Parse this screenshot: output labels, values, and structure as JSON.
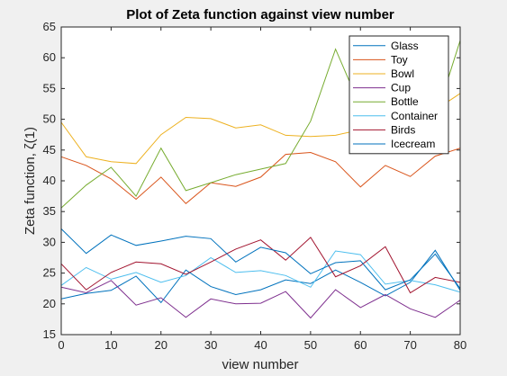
{
  "chart_data": {
    "type": "line",
    "title": "Plot of Zeta function against view number",
    "xlabel": "view number",
    "ylabel": "Zeta function, ζ(1)",
    "xlim": [
      0,
      80
    ],
    "ylim": [
      15,
      65
    ],
    "xticks": [
      0,
      10,
      20,
      30,
      40,
      50,
      60,
      70,
      80
    ],
    "yticks": [
      15,
      20,
      25,
      30,
      35,
      40,
      45,
      50,
      55,
      60,
      65
    ],
    "grid": false,
    "legend_location": "top-right",
    "x": [
      0,
      5,
      10,
      15,
      20,
      25,
      30,
      35,
      40,
      45,
      50,
      55,
      60,
      65,
      70,
      75,
      80
    ],
    "series": [
      {
        "name": "Glass",
        "color": "#0072bd",
        "values": [
          20.8,
          21.7,
          22.2,
          24.5,
          20.2,
          25.5,
          22.8,
          21.5,
          22.3,
          23.9,
          23.3,
          25.5,
          23.5,
          21.3,
          23.5,
          28.7,
          22.2
        ]
      },
      {
        "name": "Toy",
        "color": "#d95319",
        "values": [
          43.9,
          42.5,
          40.3,
          37.0,
          40.6,
          36.3,
          39.7,
          39.1,
          40.6,
          44.3,
          44.6,
          43.1,
          39.0,
          42.5,
          40.7,
          44.0,
          45.3
        ]
      },
      {
        "name": "Bowl",
        "color": "#edb120",
        "values": [
          49.5,
          43.9,
          43.1,
          42.8,
          47.5,
          50.3,
          50.1,
          48.6,
          49.1,
          47.4,
          47.2,
          47.4,
          48.3,
          49.2,
          50.3,
          51.5,
          54.2
        ]
      },
      {
        "name": "Cup",
        "color": "#7e2f8e",
        "values": [
          22.7,
          21.8,
          23.8,
          19.8,
          21.0,
          17.8,
          20.8,
          20.0,
          20.1,
          22.0,
          17.7,
          22.3,
          19.4,
          21.5,
          19.2,
          17.8,
          20.6
        ]
      },
      {
        "name": "Bottle",
        "color": "#77ac30",
        "values": [
          35.6,
          39.3,
          42.2,
          37.5,
          45.3,
          38.4,
          39.7,
          41.0,
          41.9,
          42.8,
          49.7,
          61.4,
          52.0,
          52.5,
          51.0,
          50.0,
          62.8
        ]
      },
      {
        "name": "Container",
        "color": "#4dbeee",
        "values": [
          23.0,
          25.9,
          24.0,
          25.1,
          23.5,
          24.6,
          27.5,
          25.1,
          25.4,
          24.6,
          22.7,
          28.6,
          28.0,
          23.2,
          23.8,
          23.1,
          21.9
        ]
      },
      {
        "name": "Birds",
        "color": "#a2142f",
        "values": [
          26.5,
          22.3,
          25.1,
          26.8,
          26.5,
          24.8,
          26.8,
          28.9,
          30.4,
          27.1,
          30.8,
          24.4,
          26.2,
          29.3,
          21.8,
          24.3,
          23.5
        ]
      },
      {
        "name": "Icecream",
        "color": "#0072bd",
        "values": [
          32.2,
          28.2,
          31.2,
          29.5,
          30.2,
          31.0,
          30.6,
          26.8,
          29.2,
          28.3,
          24.9,
          26.7,
          27.0,
          22.3,
          23.9,
          28.1,
          22.5
        ]
      }
    ]
  }
}
